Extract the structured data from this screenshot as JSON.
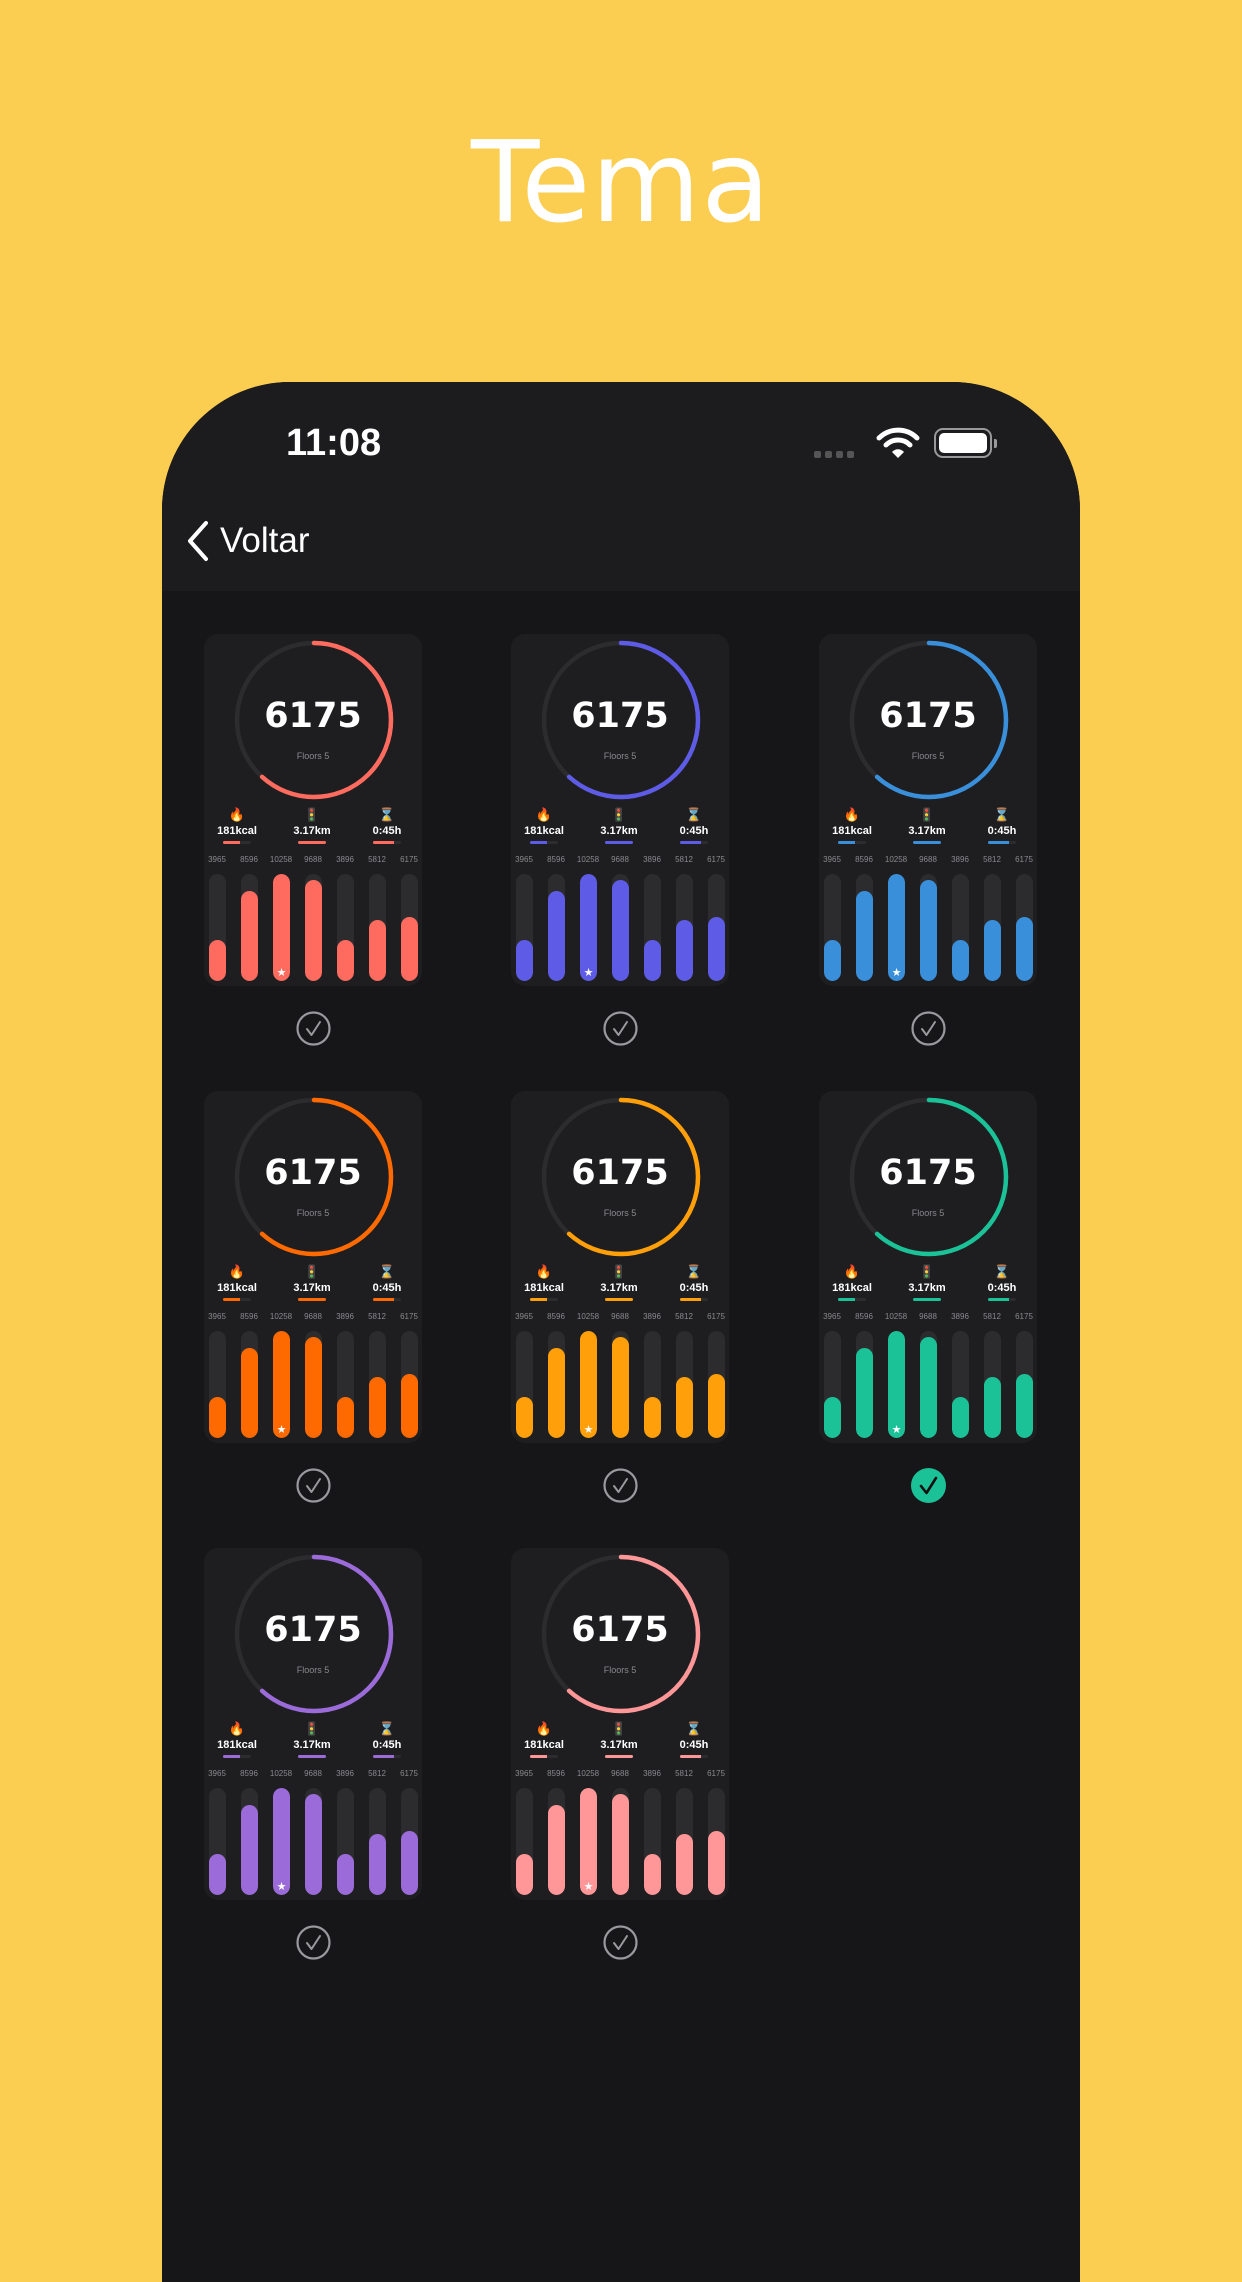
{
  "page_title": "Tema",
  "status_bar": {
    "time": "11:08"
  },
  "nav": {
    "back_label": "Voltar"
  },
  "card": {
    "steps": "6175",
    "steps_goal_fraction": 0.6175,
    "floors_label": "Floors 5",
    "stats": [
      {
        "icon": "flame-icon",
        "glyph": "🔥",
        "value": "181kcal",
        "progress": 0.6
      },
      {
        "icon": "signpost-icon",
        "glyph": "🚦",
        "value": "3.17km",
        "progress": 1.0
      },
      {
        "icon": "hourglass-icon",
        "glyph": "⌛",
        "value": "0:45h",
        "progress": 0.75
      }
    ],
    "bar_labels": [
      "3965",
      "8596",
      "10258",
      "9688",
      "3896",
      "5812",
      "6175"
    ],
    "bar_values": [
      3965,
      8596,
      10258,
      9688,
      3896,
      5812,
      6175
    ],
    "best_day_index": 2
  },
  "themes": [
    {
      "color": "#FF6B5E",
      "selected": false
    },
    {
      "color": "#5E5CE6",
      "selected": false
    },
    {
      "color": "#3A8FDB",
      "selected": false
    },
    {
      "color": "#FF6A00",
      "selected": false
    },
    {
      "color": "#FF9F0A",
      "selected": false
    },
    {
      "color": "#1BC297",
      "selected": true
    },
    {
      "color": "#9B6BD9",
      "selected": false
    },
    {
      "color": "#FF9697",
      "selected": false
    }
  ]
}
